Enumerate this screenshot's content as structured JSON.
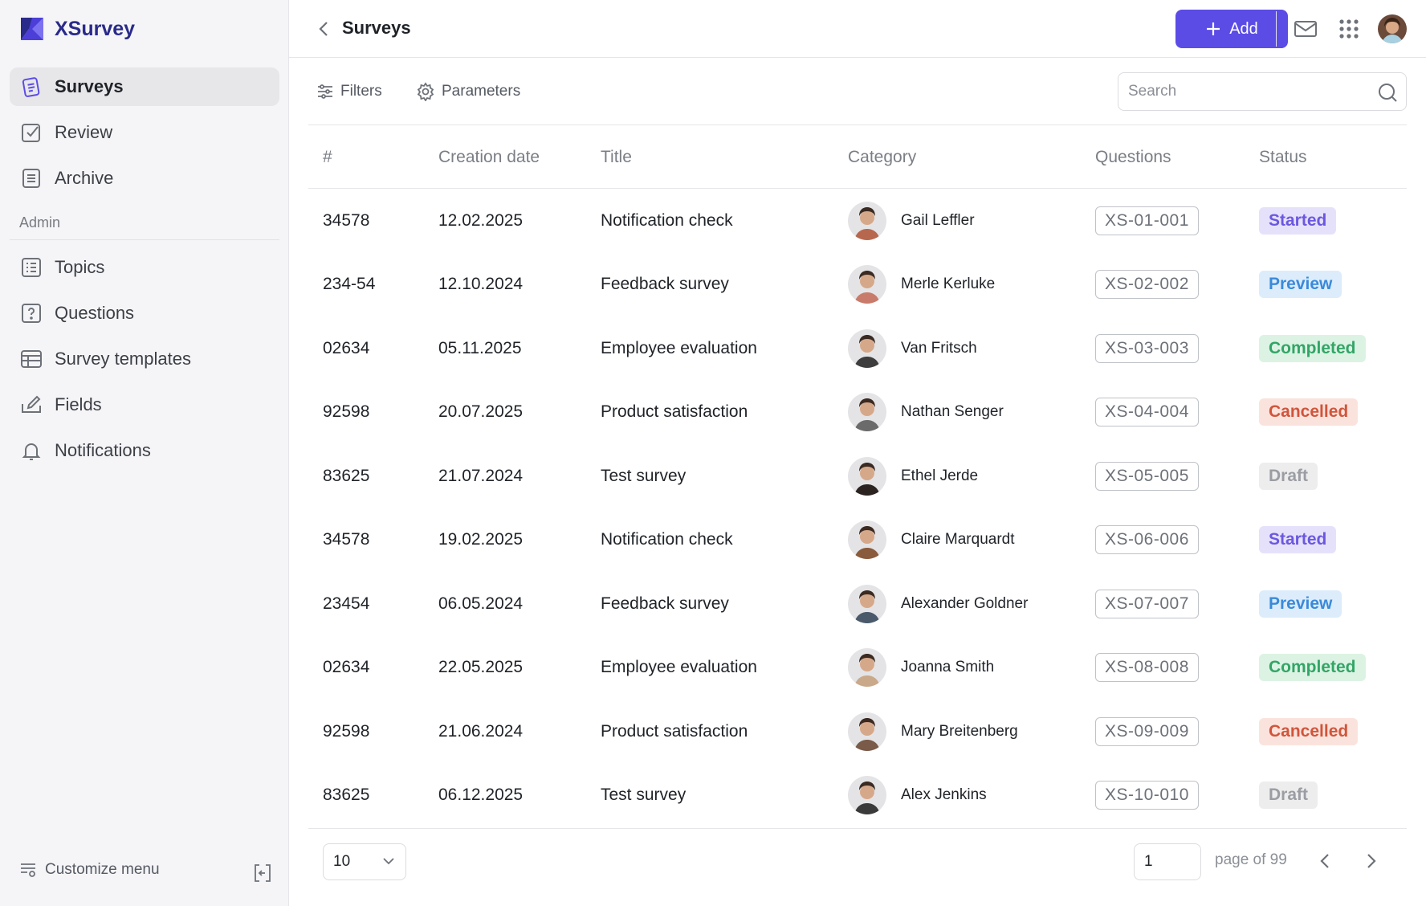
{
  "app": {
    "name": "XSurvey"
  },
  "sidebar": {
    "items": [
      {
        "label": "Surveys",
        "icon": "surveys-icon",
        "active": true
      },
      {
        "label": "Review",
        "icon": "review-icon"
      },
      {
        "label": "Archive",
        "icon": "archive-icon"
      }
    ],
    "admin_label": "Admin",
    "admin_items": [
      {
        "label": "Topics",
        "icon": "topics-icon"
      },
      {
        "label": "Questions",
        "icon": "question-icon"
      },
      {
        "label": "Survey templates",
        "icon": "table-icon"
      },
      {
        "label": "Fields",
        "icon": "edit-field-icon"
      },
      {
        "label": "Notifications",
        "icon": "bell-icon"
      }
    ],
    "customize_label": "Customize menu"
  },
  "header": {
    "title": "Surveys",
    "add_label": "Add",
    "accent_color": "#5b4ce6"
  },
  "toolbar": {
    "filters_label": "Filters",
    "parameters_label": "Parameters",
    "search_placeholder": "Search"
  },
  "table": {
    "columns": [
      "#",
      "Creation date",
      "Title",
      "Category",
      "Questions",
      "Status"
    ],
    "rows": [
      {
        "id": "34578",
        "date": "12.02.2025",
        "title": "Notification check",
        "person": "Gail Leffler",
        "questions": "XS-01-001",
        "status": "Started",
        "status_kind": "started"
      },
      {
        "id": "234-54",
        "date": "12.10.2024",
        "title": "Feedback survey",
        "person": "Merle Kerluke",
        "questions": "XS-02-002",
        "status": "Preview",
        "status_kind": "preview"
      },
      {
        "id": "02634",
        "date": "05.11.2025",
        "title": "Employee evaluation",
        "person": "Van Fritsch",
        "questions": "XS-03-003",
        "status": "Completed",
        "status_kind": "completed"
      },
      {
        "id": "92598",
        "date": "20.07.2025",
        "title": "Product satisfaction",
        "person": "Nathan Senger",
        "questions": "XS-04-004",
        "status": "Cancelled",
        "status_kind": "cancelled"
      },
      {
        "id": "83625",
        "date": "21.07.2024",
        "title": "Test survey",
        "person": "Ethel Jerde",
        "questions": "XS-05-005",
        "status": "Draft",
        "status_kind": "draft"
      },
      {
        "id": "34578",
        "date": "19.02.2025",
        "title": "Notification check",
        "person": "Claire Marquardt",
        "questions": "XS-06-006",
        "status": "Started",
        "status_kind": "started"
      },
      {
        "id": "23454",
        "date": "06.05.2024",
        "title": "Feedback survey",
        "person": "Alexander Goldner",
        "questions": "XS-07-007",
        "status": "Preview",
        "status_kind": "preview"
      },
      {
        "id": "02634",
        "date": "22.05.2025",
        "title": "Employee evaluation",
        "person": "Joanna Smith",
        "questions": "XS-08-008",
        "status": "Completed",
        "status_kind": "completed"
      },
      {
        "id": "92598",
        "date": "21.06.2024",
        "title": "Product satisfaction",
        "person": "Mary Breitenberg",
        "questions": "XS-09-009",
        "status": "Cancelled",
        "status_kind": "cancelled"
      },
      {
        "id": "83625",
        "date": "06.12.2025",
        "title": "Test survey",
        "person": "Alex Jenkins",
        "questions": "XS-10-010",
        "status": "Draft",
        "status_kind": "draft"
      }
    ]
  },
  "avatar_colors": [
    "#b8674f",
    "#c97b6b",
    "#3d3d3d",
    "#6b6b6b",
    "#2b2320",
    "#8a5a3c",
    "#4a5a6b",
    "#c9a98a",
    "#7a5a48",
    "#3a3a3a"
  ],
  "pagination": {
    "per_page": "10",
    "page": "1",
    "page_of": "page of 99"
  }
}
